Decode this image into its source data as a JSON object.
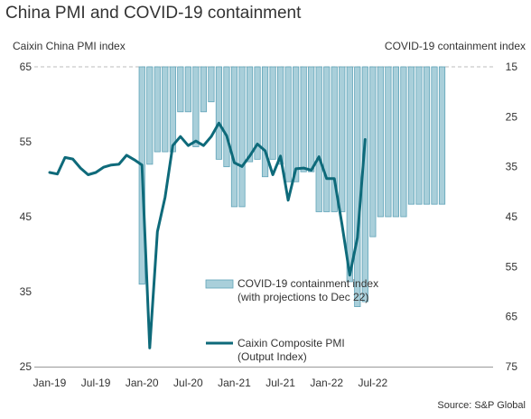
{
  "title": "China PMI and COVID-19 containment",
  "left_axis_title": "Caixin China PMI index",
  "right_axis_title": "COVID-19 containment index",
  "source": "Source: S&P Global",
  "colors": {
    "line": "#0e6a7a",
    "bar_fill": "#a9cfda",
    "bar_stroke": "#5fa3b8",
    "text": "#333333"
  },
  "chart_data": {
    "type": "bar+line",
    "title": "China PMI and COVID-19 containment",
    "x_tick_labels": [
      "Jan-19",
      "Jul-19",
      "Jan-20",
      "Jul-20",
      "Jan-21",
      "Jul-21",
      "Jan-22",
      "Jul-22"
    ],
    "left_axis": {
      "label": "Caixin China PMI index",
      "range": [
        25,
        65
      ],
      "ticks": [
        25,
        35,
        45,
        55,
        65
      ]
    },
    "right_axis": {
      "label": "COVID-19 containment index",
      "range": [
        15,
        75
      ],
      "inverted": true,
      "ticks": [
        15,
        25,
        35,
        45,
        55,
        65,
        75
      ]
    },
    "months": [
      "Jan-19",
      "Feb-19",
      "Mar-19",
      "Apr-19",
      "May-19",
      "Jun-19",
      "Jul-19",
      "Aug-19",
      "Sep-19",
      "Oct-19",
      "Nov-19",
      "Dec-19",
      "Jan-20",
      "Feb-20",
      "Mar-20",
      "Apr-20",
      "May-20",
      "Jun-20",
      "Jul-20",
      "Aug-20",
      "Sep-20",
      "Oct-20",
      "Nov-20",
      "Dec-20",
      "Jan-21",
      "Feb-21",
      "Mar-21",
      "Apr-21",
      "May-21",
      "Jun-21",
      "Jul-21",
      "Aug-21",
      "Sep-21",
      "Oct-21",
      "Nov-21",
      "Dec-21",
      "Jan-22",
      "Feb-22",
      "Mar-22",
      "Apr-22",
      "May-22",
      "Jun-22",
      "Jul-22",
      "Aug-22",
      "Sep-22",
      "Oct-22",
      "Nov-22",
      "Dec-22"
    ],
    "series": [
      {
        "name": "COVID-19 containment index",
        "label_line2": "(with projections to Dec 22)",
        "type": "bar",
        "axis": "right",
        "start_index": 12,
        "values": [
          58.5,
          34.5,
          32,
          32,
          32,
          24,
          24,
          31,
          24,
          22,
          33.5,
          35,
          43,
          43,
          34,
          33.5,
          37,
          33.5,
          34.5,
          38,
          38,
          36,
          36,
          44,
          44,
          44,
          44,
          58,
          63,
          62,
          49,
          45,
          45,
          45,
          45,
          42.5,
          42.5,
          42.5,
          42.5,
          42.5
        ]
      },
      {
        "name": "Caixin Composite PMI",
        "label_line2": "(Output Index)",
        "type": "line",
        "axis": "left",
        "values": [
          50.9,
          50.7,
          52.9,
          52.7,
          51.5,
          50.6,
          50.9,
          51.6,
          51.9,
          52.0,
          53.2,
          52.6,
          51.9,
          27.5,
          43.0,
          47.6,
          54.5,
          55.7,
          54.5,
          55.1,
          54.5,
          55.7,
          57.5,
          55.8,
          52.2,
          51.7,
          53.1,
          54.7,
          53.8,
          50.6,
          53.1,
          47.2,
          51.4,
          51.5,
          51.2,
          53.0,
          50.1,
          50.1,
          43.9,
          37.2,
          42.2,
          55.3
        ]
      }
    ]
  }
}
